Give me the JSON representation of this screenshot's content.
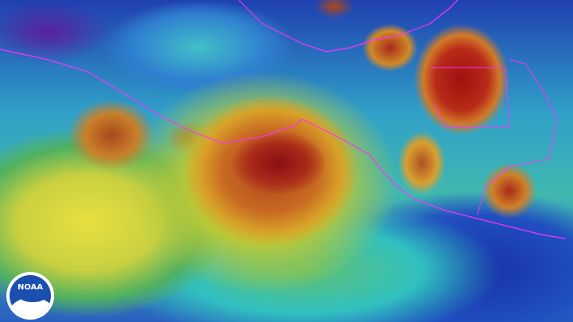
{
  "image": {
    "type": "enhanced infrared satellite imagery",
    "boundary_color": "#ff30ff",
    "palette": [
      "#5a20a0",
      "#2040b0",
      "#30c0c8",
      "#50b060",
      "#e8e040",
      "#d08028",
      "#a82a18",
      "#8a0f14"
    ]
  },
  "logo": {
    "text": "NOAA",
    "colors": {
      "ring": "#ffffff",
      "disc": "#1a4fb0"
    }
  }
}
